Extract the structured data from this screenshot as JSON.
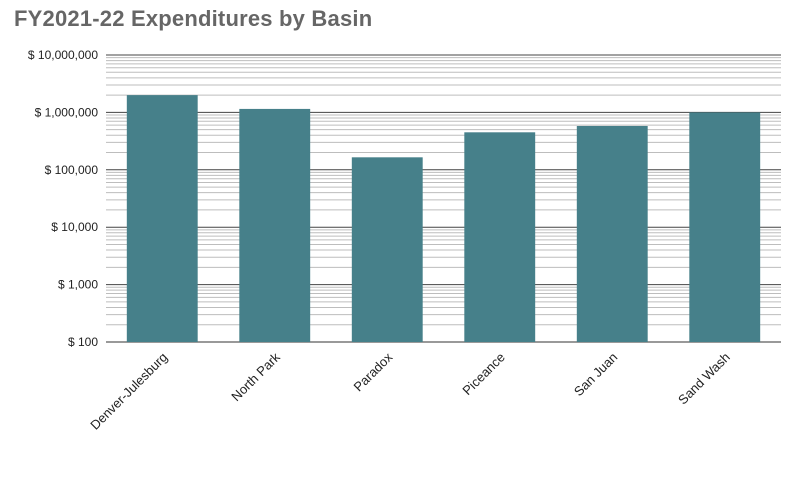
{
  "chart_data": {
    "type": "bar",
    "title": "FY2021-22 Expenditures by Basin",
    "xlabel": "",
    "ylabel": "",
    "yscale": "log",
    "ylim": [
      100,
      10000000
    ],
    "yticks": [
      {
        "value": 10000000,
        "label": "$ 10,000,000"
      },
      {
        "value": 1000000,
        "label": "$ 1,000,000"
      },
      {
        "value": 100000,
        "label": "$ 100,000"
      },
      {
        "value": 10000,
        "label": "$ 10,000"
      },
      {
        "value": 1000,
        "label": "$ 1,000"
      },
      {
        "value": 100,
        "label": "$ 100"
      }
    ],
    "categories": [
      "Denver-Julesburg",
      "North Park",
      "Paradox",
      "Piceance",
      "San Juan",
      "Sand Wash"
    ],
    "values": [
      2000000,
      1150000,
      165000,
      450000,
      580000,
      1000000
    ],
    "bar_color": "#46808a",
    "grid": true,
    "legend": "none"
  }
}
